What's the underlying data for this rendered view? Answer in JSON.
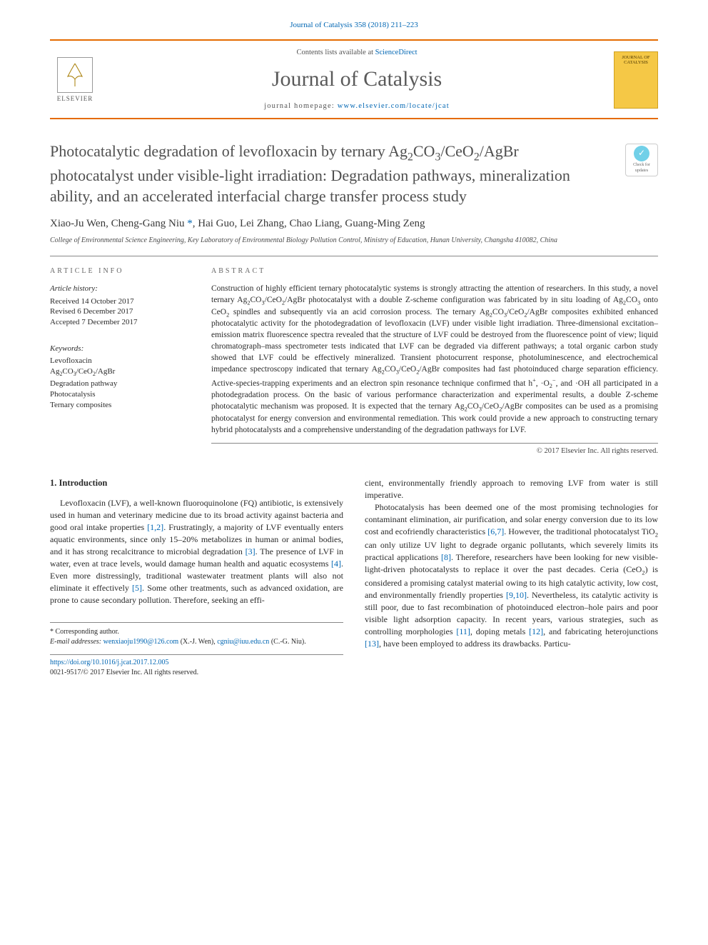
{
  "citation": "Journal of Catalysis 358 (2018) 211–223",
  "masthead": {
    "contents_prefix": "Contents lists available at ",
    "contents_link": "ScienceDirect",
    "journal_name": "Journal of Catalysis",
    "homepage_prefix": "journal homepage: ",
    "homepage_url": "www.elsevier.com/locate/jcat",
    "publisher_logo_label": "ELSEVIER",
    "cover_text_top": "JOURNAL OF",
    "cover_text_bottom": "CATALYSIS"
  },
  "check_updates": {
    "icon_glyph": "✓",
    "line1": "Check for",
    "line2": "updates"
  },
  "title_html": "Photocatalytic degradation of levofloxacin by ternary Ag<sub>2</sub>CO<sub>3</sub>/CeO<sub>2</sub>/AgBr photocatalyst under visible-light irradiation: Degradation pathways, mineralization ability, and an accelerated interfacial charge transfer process study",
  "authors_html": "Xiao-Ju Wen, Cheng-Gang Niu <span class=\"corr\">*</span>, Hai Guo, Lei Zhang, Chao Liang, Guang-Ming Zeng",
  "affiliation": "College of Environmental Science Engineering, Key Laboratory of Environmental Biology Pollution Control, Ministry of Education, Hunan University, Changsha 410082, China",
  "article_info": {
    "heading": "ARTICLE INFO",
    "history_label": "Article history:",
    "history": [
      "Received 14 October 2017",
      "Revised 6 December 2017",
      "Accepted 7 December 2017"
    ],
    "keywords_label": "Keywords:",
    "keywords": [
      "Levofloxacin",
      "Ag<sub>2</sub>CO<sub>3</sub>/CeO<sub>2</sub>/AgBr",
      "Degradation pathway",
      "Photocatalysis",
      "Ternary composites"
    ]
  },
  "abstract": {
    "heading": "ABSTRACT",
    "text_html": "Construction of highly efficient ternary photocatalytic systems is strongly attracting the attention of researchers. In this study, a novel ternary Ag<sub>2</sub>CO<sub>3</sub>/CeO<sub>2</sub>/AgBr photocatalyst with a double Z-scheme configuration was fabricated by in situ loading of Ag<sub>2</sub>CO<sub>3</sub> onto CeO<sub>2</sub> spindles and subsequently via an acid corrosion process. The ternary Ag<sub>2</sub>CO<sub>3</sub>/CeO<sub>2</sub>/AgBr composites exhibited enhanced photocatalytic activity for the photodegradation of levofloxacin (LVF) under visible light irradiation. Three-dimensional excitation–emission matrix fluorescence spectra revealed that the structure of LVF could be destroyed from the fluorescence point of view; liquid chromatograph–mass spectrometer tests indicated that LVF can be degraded via different pathways; a total organic carbon study showed that LVF could be effectively mineralized. Transient photocurrent response, photoluminescence, and electrochemical impedance spectroscopy indicated that ternary Ag<sub>2</sub>CO<sub>3</sub>/CeO<sub>2</sub>/AgBr composites had fast photoinduced charge separation efficiency. Active-species-trapping experiments and an electron spin resonance technique confirmed that h<sup>+</sup>, ·O<sub>2</sub><sup>−</sup>, and ·OH all participated in a photodegradation process. On the basic of various performance characterization and experimental results, a double Z-scheme photocatalytic mechanism was proposed. It is expected that the ternary Ag<sub>2</sub>CO<sub>3</sub>/CeO<sub>2</sub>/AgBr composites can be used as a promising photocatalyst for energy conversion and environmental remediation. This work could provide a new approach to constructing ternary hybrid photocatalysts and a comprehensive understanding of the degradation pathways for LVF.",
    "copyright": "© 2017 Elsevier Inc. All rights reserved."
  },
  "body": {
    "section_number": "1.",
    "section_title": "Introduction",
    "left_html": "Levofloxacin (LVF), a well-known fluoroquinolone (FQ) antibiotic, is extensively used in human and veterinary medicine due to its broad activity against bacteria and good oral intake properties <span class=\"ref\">[1,2]</span>. Frustratingly, a majority of LVF eventually enters aquatic environments, since only 15–20% metabolizes in human or animal bodies, and it has strong recalcitrance to microbial degradation <span class=\"ref\">[3]</span>. The presence of LVF in water, even at trace levels, would damage human health and aquatic ecosystems <span class=\"ref\">[4]</span>. Even more distressingly, traditional wastewater treatment plants will also not eliminate it effectively <span class=\"ref\">[5]</span>. Some other treatments, such as advanced oxidation, are prone to cause secondary pollution. Therefore, seeking an effi-",
    "right_p1_html": "cient, environmentally friendly approach to removing LVF from water is still imperative.",
    "right_p2_html": "Photocatalysis has been deemed one of the most promising technologies for contaminant elimination, air purification, and solar energy conversion due to its low cost and ecofriendly characteristics <span class=\"ref\">[6,7]</span>. However, the traditional photocatalyst TiO<sub>2</sub> can only utilize UV light to degrade organic pollutants, which severely limits its practical applications <span class=\"ref\">[8]</span>. Therefore, researchers have been looking for new visible-light-driven photocatalysts to replace it over the past decades. Ceria (CeO<sub>2</sub>) is considered a promising catalyst material owing to its high catalytic activity, low cost, and environmentally friendly properties <span class=\"ref\">[9,10]</span>. Nevertheless, its catalytic activity is still poor, due to fast recombination of photoinduced electron–hole pairs and poor visible light adsorption capacity. In recent years, various strategies, such as controlling morphologies <span class=\"ref\">[11]</span>, doping metals <span class=\"ref\">[12]</span>, and fabricating heterojunctions <span class=\"ref\">[13]</span>, have been employed to address its drawbacks. Particu-"
  },
  "footnotes": {
    "corr_label": "* Corresponding author.",
    "email_label": "E-mail addresses:",
    "emails_html": "<a>wenxiaoju1990@126.com</a> (X.-J. Wen), <a>cgniu@iuu.edu.cn</a> (C.-G. Niu)."
  },
  "bottom": {
    "doi_html": "<a>https://doi.org/10.1016/j.jcat.2017.12.005</a>",
    "issn_copyright": "0021-9517/© 2017 Elsevier Inc. All rights reserved."
  },
  "colors": {
    "accent_orange": "#e56b00",
    "link_blue": "#0066b3",
    "cover_bg": "#f5c846"
  }
}
